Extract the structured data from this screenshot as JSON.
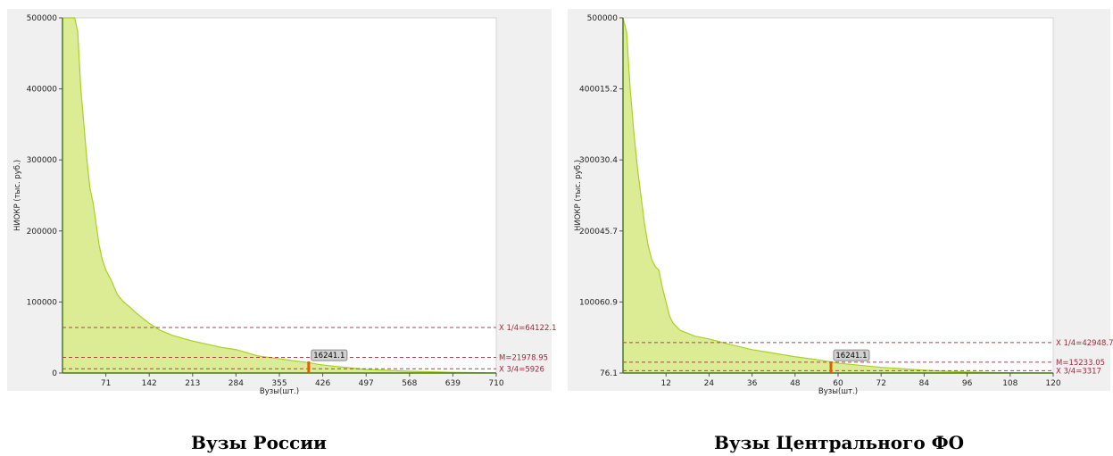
{
  "captions": {
    "left": "Вузы России",
    "right": "Вузы Центрального ФО"
  },
  "colors": {
    "fill": "#dcec94",
    "line": "#a8d028",
    "ref_line": "#b04050",
    "ref_text": "#9a2a3a",
    "marker": "#e06000",
    "panel_bg": "#f0f0f0"
  },
  "chart_data": [
    {
      "type": "area",
      "title": "",
      "xlabel": "Вузы(шт.)",
      "ylabel": "НИОКР (тыс. руб.)",
      "xlim": [
        0,
        710
      ],
      "ylim": [
        0,
        500000
      ],
      "x_ticks": [
        "71",
        "142",
        "213",
        "284",
        "355",
        "426",
        "497",
        "568",
        "639",
        "710"
      ],
      "y_ticks": [
        "500000",
        "400000",
        "300000",
        "200000",
        "100000",
        "0"
      ],
      "x": [
        0,
        10,
        20,
        25,
        30,
        35,
        40,
        45,
        50,
        55,
        60,
        65,
        71,
        80,
        90,
        100,
        110,
        120,
        130,
        142,
        160,
        180,
        200,
        213,
        240,
        260,
        284,
        320,
        355,
        380,
        400,
        420,
        450,
        497,
        568,
        639,
        710
      ],
      "values": [
        500000,
        500000,
        500000,
        480000,
        400000,
        350000,
        300000,
        260000,
        240000,
        210000,
        180000,
        160000,
        145000,
        130000,
        110000,
        100000,
        93000,
        85000,
        78000,
        70000,
        60000,
        53000,
        48000,
        45000,
        40000,
        36000,
        33000,
        24000,
        20000,
        17000,
        15000,
        12000,
        9000,
        5000,
        2500,
        1000,
        200
      ],
      "reference_lines": [
        {
          "label": "X 1/4=64122.1",
          "value": 64122.1
        },
        {
          "label": "M=21978.95",
          "value": 21978.95
        },
        {
          "label": "X 3/4=5926",
          "value": 5926
        }
      ],
      "marker": {
        "x": 403,
        "value": 16241.1,
        "label": "16241.1"
      }
    },
    {
      "type": "area",
      "title": "",
      "xlabel": "Вузы(шт.)",
      "ylabel": "НИОКР (тыс. руб.)",
      "xlim": [
        0,
        120
      ],
      "ylim": [
        76.1,
        500000
      ],
      "x_ticks": [
        "12",
        "24",
        "36",
        "48",
        "60",
        "72",
        "84",
        "96",
        "108",
        "120"
      ],
      "y_ticks": [
        "500000",
        "400015.2",
        "300030.4",
        "200045.7",
        "100060.9",
        "76.1"
      ],
      "x": [
        0,
        1,
        2,
        3,
        4,
        5,
        6,
        7,
        8,
        9,
        10,
        11,
        12,
        13,
        14,
        15,
        16,
        18,
        20,
        24,
        30,
        36,
        42,
        48,
        54,
        60,
        66,
        72,
        78,
        84,
        90,
        96,
        102,
        108,
        114,
        120
      ],
      "values": [
        500000,
        480000,
        400000,
        340000,
        290000,
        250000,
        210000,
        180000,
        160000,
        150000,
        145000,
        120000,
        100000,
        80000,
        70000,
        65000,
        60000,
        56000,
        52000,
        48000,
        40000,
        33000,
        28000,
        23000,
        19000,
        14000,
        11000,
        8000,
        6000,
        4000,
        2500,
        1500,
        900,
        500,
        250,
        120
      ],
      "reference_lines": [
        {
          "label": "X 1/4=42948.7",
          "value": 42948.7
        },
        {
          "label": "M=15233.05",
          "value": 15233.05
        },
        {
          "label": "X 3/4=3317",
          "value": 3317
        }
      ],
      "marker": {
        "x": 58,
        "value": 16241.1,
        "label": "16241.1"
      }
    }
  ]
}
